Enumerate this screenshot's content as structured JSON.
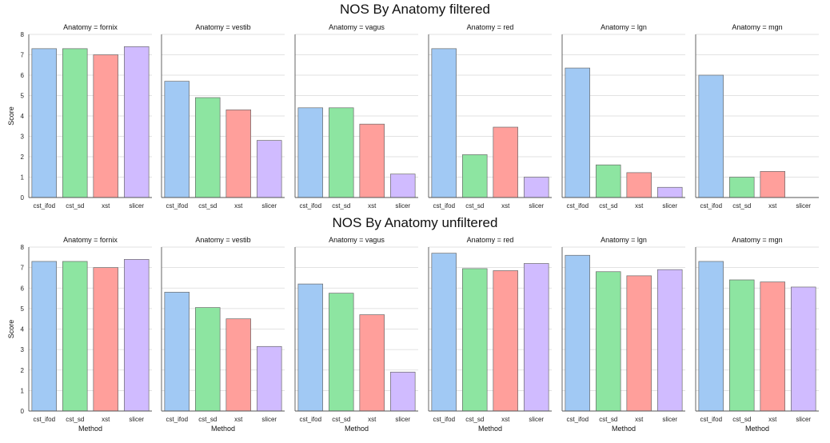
{
  "chart_data": [
    {
      "type": "bar",
      "title": "NOS By Anatomy filtered",
      "ylabel": "Score",
      "xlabel": "",
      "ylim": [
        0,
        8
      ],
      "yticks": [
        0,
        1,
        2,
        3,
        4,
        5,
        6,
        7,
        8
      ],
      "grid": true,
      "categories": [
        "cst_ifod",
        "cst_sd",
        "xst",
        "slicer"
      ],
      "colors": [
        "#a1c9f4",
        "#8de5a1",
        "#ff9f9b",
        "#d0bbff"
      ],
      "facets": [
        {
          "title": "Anatomy = fornix",
          "values": [
            7.3,
            7.3,
            7.0,
            7.4
          ]
        },
        {
          "title": "Anatomy = vestib",
          "values": [
            5.7,
            4.9,
            4.3,
            2.8
          ]
        },
        {
          "title": "Anatomy = vagus",
          "values": [
            4.4,
            4.4,
            3.6,
            1.15
          ]
        },
        {
          "title": "Anatomy = red",
          "values": [
            7.3,
            2.1,
            3.45,
            1.0
          ]
        },
        {
          "title": "Anatomy = lgn",
          "values": [
            6.35,
            1.6,
            1.22,
            0.5
          ]
        },
        {
          "title": "Anatomy = mgn",
          "values": [
            6.0,
            1.0,
            1.28,
            0.0
          ]
        }
      ]
    },
    {
      "type": "bar",
      "title": "NOS By Anatomy unfiltered",
      "ylabel": "Score",
      "xlabel": "Method",
      "ylim": [
        0,
        8
      ],
      "yticks": [
        0,
        1,
        2,
        3,
        4,
        5,
        6,
        7,
        8
      ],
      "grid": true,
      "categories": [
        "cst_ifod",
        "cst_sd",
        "xst",
        "slicer"
      ],
      "colors": [
        "#a1c9f4",
        "#8de5a1",
        "#ff9f9b",
        "#d0bbff"
      ],
      "facets": [
        {
          "title": "Anatomy = fornix",
          "values": [
            7.3,
            7.3,
            7.0,
            7.4
          ]
        },
        {
          "title": "Anatomy = vestib",
          "values": [
            5.8,
            5.05,
            4.5,
            3.15
          ]
        },
        {
          "title": "Anatomy = vagus",
          "values": [
            6.2,
            5.75,
            4.7,
            1.9
          ]
        },
        {
          "title": "Anatomy = red",
          "values": [
            7.7,
            6.95,
            6.85,
            7.2
          ]
        },
        {
          "title": "Anatomy = lgn",
          "values": [
            7.6,
            6.8,
            6.6,
            6.9
          ]
        },
        {
          "title": "Anatomy = mgn",
          "values": [
            7.3,
            6.4,
            6.3,
            6.05
          ]
        }
      ]
    }
  ]
}
